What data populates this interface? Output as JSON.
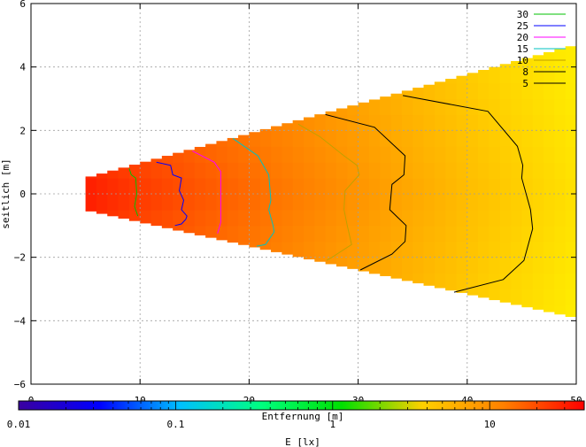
{
  "chart_data": {
    "type": "heatmap",
    "title": "",
    "xlabel": "Entfernung [m]",
    "ylabel": "seitlich [m]",
    "colorbar_label": "E [lx]",
    "xlim": [
      0,
      50
    ],
    "ylim": [
      -6,
      6
    ],
    "x_ticks": [
      "0",
      "10",
      "20",
      "30",
      "40",
      "50"
    ],
    "y_ticks": [
      "-6",
      "-4",
      "-2",
      "0",
      "2",
      "4",
      "6"
    ],
    "colorbar_ticks": [
      "0.01",
      "0.1",
      "1",
      "10"
    ],
    "colorbar_range": [
      0.01,
      40
    ],
    "colorbar_log": true,
    "grid": true,
    "legend_position": "top-right",
    "illuminated_region": {
      "x_start": 5,
      "x_end": 50,
      "y_half_width_at_start": 0.5,
      "y_half_width_at_end": [
        4.7,
        -3.9
      ]
    },
    "series": [
      {
        "name": "30",
        "color": "#00c000",
        "points": [
          [
            9,
            0.8
          ],
          [
            9.2,
            0.6
          ],
          [
            9.6,
            0.5
          ],
          [
            9.7,
            0
          ],
          [
            9.5,
            -0.4
          ],
          [
            9.8,
            -0.7
          ]
        ]
      },
      {
        "name": "25",
        "color": "#0000ff",
        "points": [
          [
            11.5,
            1.0
          ],
          [
            12.8,
            0.9
          ],
          [
            13.0,
            0.6
          ],
          [
            13.8,
            0.5
          ],
          [
            13.6,
            0.1
          ],
          [
            14,
            -0.2
          ],
          [
            13.8,
            -0.5
          ],
          [
            14.3,
            -0.7
          ],
          [
            14.2,
            -0.8
          ],
          [
            13.8,
            -0.95
          ],
          [
            13.2,
            -1.0
          ]
        ]
      },
      {
        "name": "20",
        "color": "#ff00ff",
        "points": [
          [
            14.8,
            1.35
          ],
          [
            16.8,
            1.0
          ],
          [
            17.4,
            0.7
          ],
          [
            17.4,
            -0.9
          ],
          [
            17.1,
            -1.25
          ]
        ]
      },
      {
        "name": "15",
        "color": "#00c0c0",
        "points": [
          [
            18.5,
            1.75
          ],
          [
            20.8,
            1.2
          ],
          [
            21.8,
            0.6
          ],
          [
            22.0,
            -0.2
          ],
          [
            21.8,
            -0.5
          ],
          [
            22.2,
            -1.0
          ],
          [
            22.3,
            -1.2
          ],
          [
            21.5,
            -1.6
          ],
          [
            20.7,
            -1.65
          ]
        ]
      },
      {
        "name": "10",
        "color": "#c0a000",
        "points": [
          [
            24.5,
            2.2
          ],
          [
            26.5,
            1.8
          ],
          [
            28.7,
            1.2
          ],
          [
            29.9,
            0.9
          ],
          [
            30.1,
            0.6
          ],
          [
            28.8,
            0.1
          ],
          [
            28.7,
            -0.5
          ],
          [
            29.0,
            -1.0
          ],
          [
            29.4,
            -1.6
          ],
          [
            27.6,
            -2.0
          ],
          [
            27.1,
            -2.1
          ]
        ]
      },
      {
        "name": "8",
        "color": "#000000",
        "points": [
          [
            27,
            2.5
          ],
          [
            31.5,
            2.1
          ],
          [
            34.3,
            1.2
          ],
          [
            34.2,
            0.6
          ],
          [
            33.1,
            0.3
          ],
          [
            32.9,
            -0.5
          ],
          [
            34.4,
            -1.0
          ],
          [
            34.3,
            -1.5
          ],
          [
            33.1,
            -1.9
          ],
          [
            30.2,
            -2.4
          ]
        ]
      },
      {
        "name": "5",
        "color": "#000000",
        "points": [
          [
            34.1,
            3.1
          ],
          [
            41.9,
            2.6
          ],
          [
            44.6,
            1.5
          ],
          [
            45.1,
            0.9
          ],
          [
            45.0,
            0.5
          ],
          [
            45.8,
            -0.5
          ],
          [
            46.0,
            -1.1
          ],
          [
            45.2,
            -2.1
          ],
          [
            43.3,
            -2.7
          ],
          [
            38.8,
            -3.1
          ]
        ]
      }
    ],
    "colorbar_colors": [
      "#3a00a0",
      "#0000ff",
      "#00c0ff",
      "#00ff80",
      "#00e000",
      "#ffd000",
      "#ff8000",
      "#ff0000"
    ]
  }
}
